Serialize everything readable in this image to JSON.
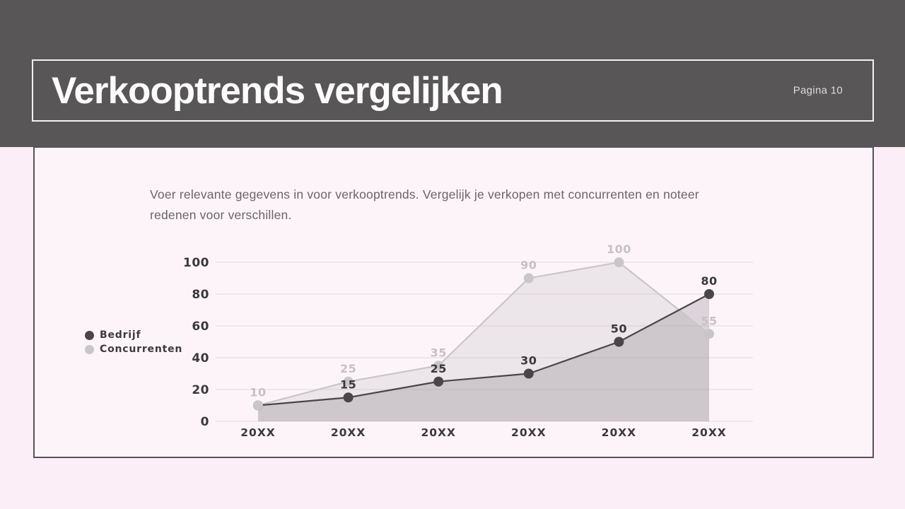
{
  "header": {
    "title": "Verkooptrends vergelijken",
    "page_label": "Pagina 10"
  },
  "description": {
    "line1": "Voer relevante gegevens in voor verkooptrends. Vergelijk je verkopen met concurrenten en noteer",
    "line2": "redenen voor verschillen."
  },
  "chart_data": {
    "type": "area",
    "categories": [
      "20XX",
      "20XX",
      "20XX",
      "20XX",
      "20XX",
      "20XX"
    ],
    "series": [
      {
        "name": "Bedrijf",
        "values": [
          10,
          15,
          25,
          30,
          50,
          80
        ],
        "color": "#4a4647",
        "fill": "#59565a",
        "fill_opacity": 0.2,
        "label_color": "#3b3839",
        "labels_visible": [
          false,
          true,
          true,
          true,
          true,
          true
        ]
      },
      {
        "name": "Concurrenten",
        "values": [
          10,
          25,
          35,
          90,
          100,
          55
        ],
        "color": "#c9c6c7",
        "fill": "#c9c6c7",
        "fill_opacity": 0.34,
        "label_color": "#c5c2c3",
        "labels_visible": [
          true,
          true,
          true,
          true,
          true,
          true
        ]
      }
    ],
    "yticks": [
      0,
      20,
      40,
      60,
      80,
      100
    ],
    "ylim": [
      0,
      100
    ],
    "grid": true,
    "grid_color": "#e4dfe2",
    "axis_label_color": "#3b3839",
    "legend_position": "left",
    "title": "",
    "xlabel": "",
    "ylabel": ""
  },
  "colors": {
    "header_background": "#595657",
    "slide_background": "#fbeef6",
    "content_background": "#fdf4fa",
    "content_border": "#56525b",
    "title_text": "#fdfcfd"
  }
}
